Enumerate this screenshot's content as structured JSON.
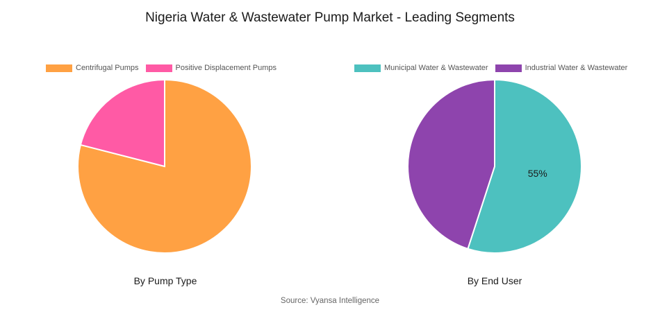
{
  "title": "Nigeria Water & Wastewater Pump Market - Leading Segments",
  "source": "Source: Vyansa Intelligence",
  "chart_data": [
    {
      "type": "pie",
      "subtitle": "By Pump Type",
      "legend_position": "top",
      "slices": [
        {
          "label": "Centrifugal Pumps",
          "value": 79,
          "color": "#FFA143",
          "data_label": ""
        },
        {
          "label": "Positive Displacement Pumps",
          "value": 21,
          "color": "#FF5AA5",
          "data_label": ""
        }
      ]
    },
    {
      "type": "pie",
      "subtitle": "By End User",
      "legend_position": "top",
      "slices": [
        {
          "label": "Municipal Water & Wastewater",
          "value": 55,
          "color": "#4DC1BF",
          "data_label": "55%"
        },
        {
          "label": "Industrial Water & Wastewater",
          "value": 45,
          "color": "#8E44AD",
          "data_label": ""
        }
      ]
    }
  ]
}
